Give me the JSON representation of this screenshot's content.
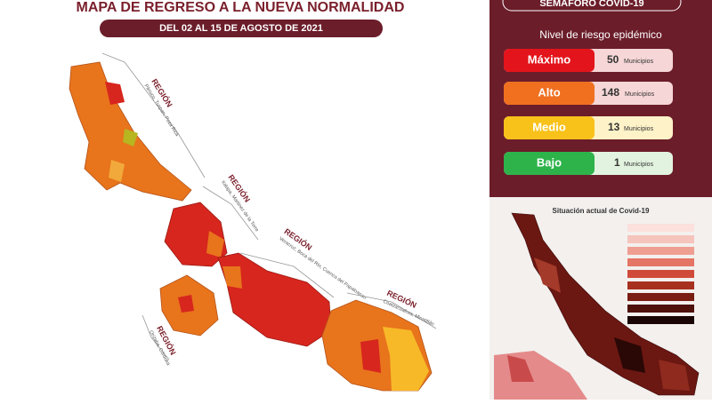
{
  "header": {
    "title": "MAPA DE REGRESO A LA NUEVA NORMALIDAD",
    "subtitle": "DEL 02 AL 15 DE AGOSTO DE 2021"
  },
  "regions": [
    {
      "label": "REGIÓN",
      "cities": "Pánuco, Tuxpan, Poza Rica"
    },
    {
      "label": "REGIÓN",
      "cities": "Xalapa, Martínez de la Torre"
    },
    {
      "label": "REGIÓN",
      "cities": "Veracruz, Boca del Río, Cuenca del Papaloapan"
    },
    {
      "label": "REGIÓN",
      "cities": "Coatzacoalcos, Minatitlán"
    },
    {
      "label": "REGIÓN",
      "cities": "Orizaba, Córdoba"
    }
  ],
  "semaforo": {
    "title": "SEMÁFORO COVID-19",
    "subtitle": "Nivel de riesgo epidémico",
    "levels": [
      {
        "name": "Máximo",
        "count": 50,
        "unit": "Municipios"
      },
      {
        "name": "Alto",
        "count": 148,
        "unit": "Municipios"
      },
      {
        "name": "Medio",
        "count": 13,
        "unit": "Municipios"
      },
      {
        "name": "Bajo",
        "count": 1,
        "unit": "Municipios"
      }
    ]
  },
  "situation": {
    "title": "Situación actual de Covid-19"
  }
}
